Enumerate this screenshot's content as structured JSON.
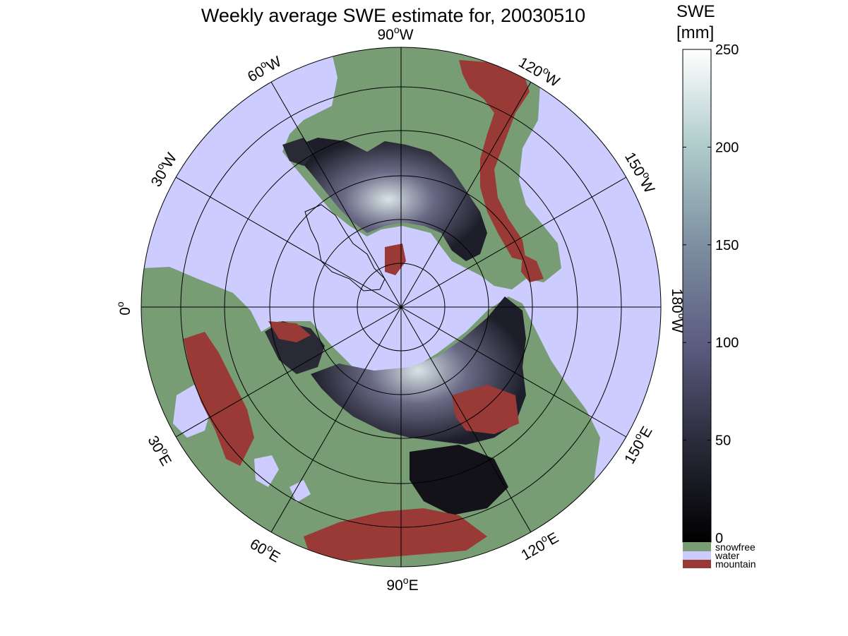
{
  "title": "Weekly average SWE estimate for, 20030510",
  "longitude_labels": [
    {
      "lon": "90",
      "hemi": "W"
    },
    {
      "lon": "120",
      "hemi": "W"
    },
    {
      "lon": "60",
      "hemi": "W"
    },
    {
      "lon": "150",
      "hemi": "W"
    },
    {
      "lon": "30",
      "hemi": "W"
    },
    {
      "lon": "180",
      "hemi": "W"
    },
    {
      "lon": "0",
      "hemi": ""
    },
    {
      "lon": "150",
      "hemi": "E"
    },
    {
      "lon": "30",
      "hemi": "E"
    },
    {
      "lon": "120",
      "hemi": "E"
    },
    {
      "lon": "60",
      "hemi": "E"
    },
    {
      "lon": "90",
      "hemi": "E"
    }
  ],
  "colorbar": {
    "title_line1": "SWE",
    "title_line2": "[mm]",
    "ticks": [
      "250",
      "200",
      "150",
      "100",
      "50",
      "0"
    ],
    "tick_values": [
      250,
      200,
      150,
      100,
      50,
      0
    ],
    "range": [
      0,
      250
    ],
    "categories": [
      {
        "label": "snowfree",
        "color": "#789c74"
      },
      {
        "label": "water",
        "color": "#ccccff"
      },
      {
        "label": "mountain",
        "color": "#9a3a36"
      }
    ]
  },
  "colors": {
    "ocean": "#ccccff",
    "land": "#789c74",
    "mountain": "#9a3a36",
    "snow_low": "#1a1a24",
    "snow_mid": "#5a5a78",
    "snow_high": "#ffffff"
  }
}
